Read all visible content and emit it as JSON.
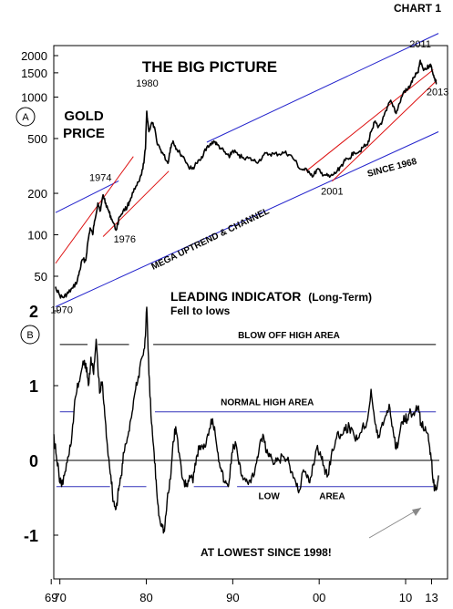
{
  "chart_data": [
    {
      "type": "line",
      "chart_label": "CHART 1",
      "title": "THE BIG PICTURE",
      "panel": "A",
      "series": [
        {
          "name": "GOLD PRICE",
          "color": "#000000"
        }
      ],
      "y_scale": "log",
      "y_ticks": [
        {
          "value": 2000,
          "label": "2000"
        },
        {
          "value": 1500,
          "label": "1500"
        },
        {
          "value": 1000,
          "label": "1000"
        },
        {
          "value": 500,
          "label": "500"
        },
        {
          "value": 200,
          "label": "200"
        },
        {
          "value": 100,
          "label": "100"
        },
        {
          "value": 50,
          "label": "50"
        }
      ],
      "gold_points": [
        [
          1969.5,
          42
        ],
        [
          1970.0,
          36
        ],
        [
          1970.4,
          35
        ],
        [
          1970.8,
          37
        ],
        [
          1971.0,
          38
        ],
        [
          1971.5,
          41
        ],
        [
          1972.0,
          46
        ],
        [
          1972.3,
          55
        ],
        [
          1972.6,
          66
        ],
        [
          1973.0,
          65
        ],
        [
          1973.2,
          85
        ],
        [
          1973.5,
          112
        ],
        [
          1973.8,
          100
        ],
        [
          1974.0,
          125
        ],
        [
          1974.4,
          170
        ],
        [
          1974.7,
          150
        ],
        [
          1975.0,
          195
        ],
        [
          1975.3,
          170
        ],
        [
          1975.7,
          145
        ],
        [
          1976.0,
          130
        ],
        [
          1976.5,
          108
        ],
        [
          1976.9,
          135
        ],
        [
          1977.3,
          148
        ],
        [
          1977.8,
          160
        ],
        [
          1978.2,
          185
        ],
        [
          1978.7,
          215
        ],
        [
          1979.2,
          245
        ],
        [
          1979.6,
          300
        ],
        [
          1979.9,
          420
        ],
        [
          1980.05,
          790
        ],
        [
          1980.3,
          560
        ],
        [
          1980.6,
          650
        ],
        [
          1980.9,
          610
        ],
        [
          1981.2,
          480
        ],
        [
          1981.6,
          420
        ],
        [
          1982.0,
          380
        ],
        [
          1982.5,
          330
        ],
        [
          1982.8,
          430
        ],
        [
          1983.1,
          480
        ],
        [
          1983.5,
          420
        ],
        [
          1983.9,
          390
        ],
        [
          1984.4,
          360
        ],
        [
          1984.9,
          310
        ],
        [
          1985.3,
          300
        ],
        [
          1985.8,
          330
        ],
        [
          1986.3,
          350
        ],
        [
          1986.8,
          420
        ],
        [
          1987.3,
          440
        ],
        [
          1987.8,
          480
        ],
        [
          1988.2,
          450
        ],
        [
          1988.7,
          420
        ],
        [
          1989.2,
          385
        ],
        [
          1989.7,
          375
        ],
        [
          1990.0,
          410
        ],
        [
          1990.6,
          380
        ],
        [
          1991.2,
          365
        ],
        [
          1991.8,
          360
        ],
        [
          1992.4,
          345
        ],
        [
          1993.0,
          340
        ],
        [
          1993.6,
          380
        ],
        [
          1994.2,
          385
        ],
        [
          1994.8,
          385
        ],
        [
          1995.4,
          385
        ],
        [
          1996.0,
          395
        ],
        [
          1996.6,
          380
        ],
        [
          1997.2,
          345
        ],
        [
          1997.8,
          300
        ],
        [
          1998.3,
          295
        ],
        [
          1998.8,
          290
        ],
        [
          1999.3,
          265
        ],
        [
          1999.8,
          300
        ],
        [
          2000.2,
          280
        ],
        [
          2000.7,
          272
        ],
        [
          2001.2,
          262
        ],
        [
          2001.6,
          272
        ],
        [
          2002.0,
          285
        ],
        [
          2002.5,
          315
        ],
        [
          2003.0,
          345
        ],
        [
          2003.5,
          360
        ],
        [
          2004.0,
          400
        ],
        [
          2004.6,
          400
        ],
        [
          2005.0,
          430
        ],
        [
          2005.6,
          450
        ],
        [
          2006.0,
          560
        ],
        [
          2006.4,
          660
        ],
        [
          2006.8,
          600
        ],
        [
          2007.3,
          670
        ],
        [
          2007.8,
          800
        ],
        [
          2008.2,
          930
        ],
        [
          2008.6,
          860
        ],
        [
          2008.9,
          760
        ],
        [
          2009.3,
          900
        ],
        [
          2009.8,
          1100
        ],
        [
          2010.2,
          1120
        ],
        [
          2010.6,
          1240
        ],
        [
          2011.0,
          1400
        ],
        [
          2011.4,
          1500
        ],
        [
          2011.7,
          1850
        ],
        [
          2012.0,
          1620
        ],
        [
          2012.4,
          1600
        ],
        [
          2012.8,
          1720
        ],
        [
          2013.0,
          1650
        ],
        [
          2013.3,
          1380
        ],
        [
          2013.6,
          1250
        ]
      ],
      "channel_lines": [
        {
          "color": "#2222cc",
          "from": [
            1969.5,
            30
          ],
          "to": [
            2013.8,
            560
          ]
        },
        {
          "color": "#2222cc",
          "from": [
            1969.5,
            145
          ],
          "to": [
            1976.8,
            246
          ]
        },
        {
          "color": "#2222cc",
          "from": [
            1987.0,
            470
          ],
          "to": [
            2013.8,
            2900
          ]
        },
        {
          "color": "#dd1111",
          "from": [
            1969.5,
            62
          ],
          "to": [
            1978.5,
            370
          ]
        },
        {
          "color": "#dd1111",
          "from": [
            1975.0,
            97
          ],
          "to": [
            1982.6,
            290
          ]
        },
        {
          "color": "#dd1111",
          "from": [
            1998.5,
            290
          ],
          "to": [
            2013.2,
            1580
          ]
        },
        {
          "color": "#dd1111",
          "from": [
            2001.5,
            245
          ],
          "to": [
            2013.6,
            1320
          ]
        }
      ],
      "annotations": [
        {
          "text": "1974",
          "x": 1974.7,
          "y": 245,
          "font": 11,
          "bold": false
        },
        {
          "text": "1976",
          "x": 1977.5,
          "y": 88,
          "font": 11,
          "bold": false
        },
        {
          "text": "1980",
          "x": 1980.1,
          "y": 1190,
          "font": 11,
          "bold": false
        },
        {
          "text": "2001",
          "x": 2001.5,
          "y": 195,
          "font": 11,
          "bold": false
        },
        {
          "text": "2011",
          "x": 2011.7,
          "y": 2300,
          "font": 11,
          "bold": false
        },
        {
          "text": "2013",
          "x": 2013.7,
          "y": 1030,
          "font": 11,
          "bold": false
        },
        {
          "text": "1970",
          "x": 1970.2,
          "y": 27,
          "font": 11,
          "bold": false
        }
      ],
      "label_gold": "GOLD",
      "label_price": "PRICE",
      "label_since": "SINCE 1968",
      "label_mega": "MEGA UPTREND & CHANNEL"
    },
    {
      "type": "line",
      "title": "LEADING INDICATOR",
      "title_suffix": "(Long-Term)",
      "subtitle": "Fell to lows",
      "panel": "B",
      "series": [
        {
          "name": "LEADING INDICATOR",
          "color": "#000000"
        }
      ],
      "y_ticks": [
        {
          "value": 2,
          "label": "2"
        },
        {
          "value": 1,
          "label": "1"
        },
        {
          "value": 0,
          "label": "0"
        },
        {
          "value": -1,
          "label": "-1"
        }
      ],
      "indicator_points": [
        [
          1969.3,
          0.35
        ],
        [
          1969.6,
          0.05
        ],
        [
          1969.9,
          -0.2
        ],
        [
          1970.2,
          -0.35
        ],
        [
          1970.6,
          -0.15
        ],
        [
          1971.0,
          0.05
        ],
        [
          1971.4,
          0.35
        ],
        [
          1971.8,
          0.85
        ],
        [
          1972.2,
          1.05
        ],
        [
          1972.6,
          1.25
        ],
        [
          1973.0,
          1.3
        ],
        [
          1973.3,
          1.0
        ],
        [
          1973.6,
          1.38
        ],
        [
          1973.9,
          1.15
        ],
        [
          1974.2,
          1.62
        ],
        [
          1974.6,
          0.9
        ],
        [
          1974.9,
          1.05
        ],
        [
          1975.2,
          0.6
        ],
        [
          1975.5,
          0.2
        ],
        [
          1975.9,
          -0.2
        ],
        [
          1976.2,
          -0.55
        ],
        [
          1976.5,
          -0.65
        ],
        [
          1976.8,
          -0.4
        ],
        [
          1977.1,
          -0.2
        ],
        [
          1977.4,
          0.1
        ],
        [
          1977.8,
          0.3
        ],
        [
          1978.2,
          0.55
        ],
        [
          1978.6,
          0.85
        ],
        [
          1979.0,
          1.05
        ],
        [
          1979.4,
          1.35
        ],
        [
          1979.8,
          1.5
        ],
        [
          1980.05,
          2.05
        ],
        [
          1980.3,
          1.15
        ],
        [
          1980.6,
          0.5
        ],
        [
          1980.9,
          0.1
        ],
        [
          1981.2,
          -0.4
        ],
        [
          1981.5,
          -0.75
        ],
        [
          1981.8,
          -0.85
        ],
        [
          1982.1,
          -0.95
        ],
        [
          1982.4,
          -0.55
        ],
        [
          1982.8,
          -0.25
        ],
        [
          1983.1,
          0.25
        ],
        [
          1983.4,
          0.45
        ],
        [
          1983.8,
          0.1
        ],
        [
          1984.2,
          -0.25
        ],
        [
          1984.6,
          -0.35
        ],
        [
          1985.0,
          -0.2
        ],
        [
          1985.4,
          -0.3
        ],
        [
          1985.8,
          0.05
        ],
        [
          1986.2,
          0.2
        ],
        [
          1986.6,
          0.15
        ],
        [
          1987.0,
          0.3
        ],
        [
          1987.5,
          0.55
        ],
        [
          1987.9,
          0.45
        ],
        [
          1988.3,
          0.1
        ],
        [
          1988.7,
          -0.15
        ],
        [
          1989.1,
          -0.3
        ],
        [
          1989.5,
          -0.35
        ],
        [
          1989.9,
          0.1
        ],
        [
          1990.3,
          0.25
        ],
        [
          1990.7,
          -0.05
        ],
        [
          1991.1,
          -0.2
        ],
        [
          1991.6,
          -0.25
        ],
        [
          1992.1,
          -0.3
        ],
        [
          1992.6,
          -0.1
        ],
        [
          1993.0,
          0.1
        ],
        [
          1993.5,
          0.35
        ],
        [
          1993.9,
          0.1
        ],
        [
          1994.3,
          0.05
        ],
        [
          1994.8,
          -0.05
        ],
        [
          1995.3,
          0.0
        ],
        [
          1995.8,
          0.05
        ],
        [
          1996.3,
          0.0
        ],
        [
          1996.8,
          -0.15
        ],
        [
          1997.3,
          -0.3
        ],
        [
          1997.7,
          -0.4
        ],
        [
          1998.1,
          -0.15
        ],
        [
          1998.5,
          -0.2
        ],
        [
          1998.9,
          -0.3
        ],
        [
          1999.3,
          -0.05
        ],
        [
          1999.8,
          0.2
        ],
        [
          2000.2,
          0.05
        ],
        [
          2000.6,
          -0.1
        ],
        [
          2001.0,
          -0.2
        ],
        [
          2001.5,
          0.15
        ],
        [
          2002.0,
          0.3
        ],
        [
          2002.5,
          0.35
        ],
        [
          2003.0,
          0.4
        ],
        [
          2003.5,
          0.45
        ],
        [
          2004.0,
          0.35
        ],
        [
          2004.5,
          0.3
        ],
        [
          2005.0,
          0.45
        ],
        [
          2005.5,
          0.5
        ],
        [
          2006.0,
          0.95
        ],
        [
          2006.4,
          0.55
        ],
        [
          2006.8,
          0.3
        ],
        [
          2007.2,
          0.45
        ],
        [
          2007.7,
          0.6
        ],
        [
          2008.1,
          0.75
        ],
        [
          2008.5,
          0.45
        ],
        [
          2008.9,
          0.15
        ],
        [
          2009.3,
          0.35
        ],
        [
          2009.8,
          0.6
        ],
        [
          2010.2,
          0.55
        ],
        [
          2010.6,
          0.65
        ],
        [
          2011.0,
          0.6
        ],
        [
          2011.4,
          0.7
        ],
        [
          2011.8,
          0.5
        ],
        [
          2012.2,
          0.4
        ],
        [
          2012.6,
          0.35
        ],
        [
          2012.9,
          0.1
        ],
        [
          2013.2,
          -0.3
        ],
        [
          2013.5,
          -0.4
        ],
        [
          2013.8,
          -0.2
        ]
      ],
      "ref_lines": [
        {
          "label": "BLOW OFF HIGH AREA",
          "value": 1.55,
          "color": "#000000",
          "from": 1969.5,
          "to": 2013.8
        },
        {
          "label": "NORMAL HIGH AREA",
          "value": 0.65,
          "color": "#3333bb",
          "from": 1969.5,
          "to": 2013.8
        },
        {
          "label": "LOW",
          "value": -0.35,
          "color": "#3333bb",
          "from": 1969.5,
          "to": 2013.8
        },
        {
          "label": "AREA",
          "value": -0.35,
          "color": "#3333bb",
          "from": 1969.5,
          "to": 2013.8
        }
      ],
      "zero_line": 0,
      "callout": "AT LOWEST SINCE 1998!",
      "panel_letter": "B"
    }
  ],
  "x_axis": {
    "tick_labels": [
      {
        "label": "69",
        "value": 1969
      },
      {
        "label": "70",
        "value": 1970
      },
      {
        "label": "80",
        "value": 1980
      },
      {
        "label": "90",
        "value": 1990
      },
      {
        "label": "00",
        "value": 2000
      },
      {
        "label": "10",
        "value": 2010
      },
      {
        "label": "13",
        "value": 2013
      }
    ]
  }
}
